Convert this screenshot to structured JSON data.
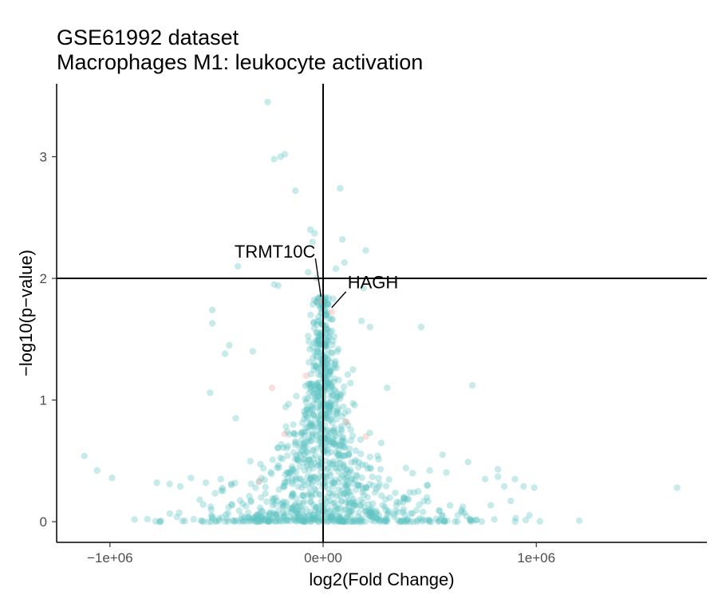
{
  "chart_data": {
    "type": "scatter",
    "title": "GSE61992 dataset",
    "subtitle": "Macrophages M1: leukocyte activation",
    "xlabel": "log2(Fold Change)",
    "ylabel": "−log10(p−value)",
    "xlim": [
      -1250000,
      1800000
    ],
    "ylim": [
      -0.17,
      3.6
    ],
    "x_ticks": [
      {
        "value": -1000000,
        "label": "−1e+06"
      },
      {
        "value": 0,
        "label": "0e+00"
      },
      {
        "value": 1000000,
        "label": "1e+06"
      }
    ],
    "y_ticks": [
      {
        "value": 0,
        "label": "0"
      },
      {
        "value": 1,
        "label": "1"
      },
      {
        "value": 2,
        "label": "2"
      },
      {
        "value": 3,
        "label": "3"
      }
    ],
    "reference_lines": {
      "vertical_x": 0,
      "horizontal_y": 2
    },
    "grid": false,
    "legend": "none",
    "colors": {
      "not_significant": "#5ec4c4",
      "highlighted": "#f0a39b",
      "lines": "#000000"
    },
    "series": [
      {
        "color_key": "not_significant",
        "points": [
          {
            "x": -260000,
            "y": 3.45
          },
          {
            "x": -180000,
            "y": 3.02
          },
          {
            "x": -200000,
            "y": 3.0
          },
          {
            "x": -230000,
            "y": 2.98
          },
          {
            "x": -130000,
            "y": 2.72
          },
          {
            "x": 80000,
            "y": 2.74
          },
          {
            "x": -60000,
            "y": 2.4
          },
          {
            "x": -40000,
            "y": 2.37
          },
          {
            "x": -50000,
            "y": 2.3
          },
          {
            "x": 90000,
            "y": 2.32
          },
          {
            "x": 200000,
            "y": 2.23
          },
          {
            "x": -400000,
            "y": 2.1
          },
          {
            "x": 100000,
            "y": 2.13
          },
          {
            "x": 60000,
            "y": 2.08
          },
          {
            "x": -70000,
            "y": 2.05
          },
          {
            "x": -30000,
            "y": 2.0
          },
          {
            "x": -230000,
            "y": 1.95
          },
          {
            "x": -210000,
            "y": 1.94
          },
          {
            "x": 190000,
            "y": 1.92
          },
          {
            "x": -520000,
            "y": 1.74
          },
          {
            "x": -520000,
            "y": 1.63
          },
          {
            "x": -440000,
            "y": 1.45
          },
          {
            "x": -460000,
            "y": 1.38
          },
          {
            "x": -330000,
            "y": 1.4
          },
          {
            "x": -530000,
            "y": 1.06
          },
          {
            "x": -410000,
            "y": 0.85
          },
          {
            "x": 460000,
            "y": 1.6
          },
          {
            "x": 700000,
            "y": 1.12
          },
          {
            "x": 180000,
            "y": 1.65
          },
          {
            "x": 220000,
            "y": 1.6
          },
          {
            "x": 140000,
            "y": 1.25
          },
          {
            "x": 300000,
            "y": 1.1
          },
          {
            "x": -1120000,
            "y": 0.54
          },
          {
            "x": -1060000,
            "y": 0.42
          },
          {
            "x": -990000,
            "y": 0.36
          },
          {
            "x": -780000,
            "y": 0.32
          },
          {
            "x": -720000,
            "y": 0.31
          },
          {
            "x": -670000,
            "y": 0.29
          },
          {
            "x": -620000,
            "y": 0.36
          },
          {
            "x": -550000,
            "y": 0.32
          },
          {
            "x": -480000,
            "y": 0.35
          },
          {
            "x": -430000,
            "y": 0.3
          },
          {
            "x": 680000,
            "y": 0.49
          },
          {
            "x": 760000,
            "y": 0.35
          },
          {
            "x": 820000,
            "y": 0.37
          },
          {
            "x": 850000,
            "y": 0.29
          },
          {
            "x": 900000,
            "y": 0.35
          },
          {
            "x": 940000,
            "y": 0.29
          },
          {
            "x": 990000,
            "y": 0.28
          },
          {
            "x": 1660000,
            "y": 0.28
          },
          {
            "x": 880000,
            "y": 0.17
          },
          {
            "x": 820000,
            "y": 0.43
          },
          {
            "x": 560000,
            "y": 0.55
          },
          {
            "x": 500000,
            "y": 0.42
          },
          {
            "x": 420000,
            "y": 0.4
          }
        ],
        "cluster": {
          "x_center": 0,
          "x_spread_base": 360000,
          "y_min": 0,
          "y_max": 1.85,
          "count": 1200
        }
      },
      {
        "color_key": "highlighted",
        "points": [
          {
            "x": -240000,
            "y": 1.1
          },
          {
            "x": -80000,
            "y": 1.2
          },
          {
            "x": 110000,
            "y": 0.82
          },
          {
            "x": 200000,
            "y": 0.7
          },
          {
            "x": -180000,
            "y": 0.72
          },
          {
            "x": -300000,
            "y": 0.33
          },
          {
            "x": 40000,
            "y": 1.72
          },
          {
            "x": -10000,
            "y": 1.81
          }
        ]
      }
    ],
    "labeled_points": [
      {
        "label": "TRMT10C",
        "x": -10000,
        "y": 1.81
      },
      {
        "label": "HAGH",
        "x": 40000,
        "y": 1.72
      }
    ]
  }
}
